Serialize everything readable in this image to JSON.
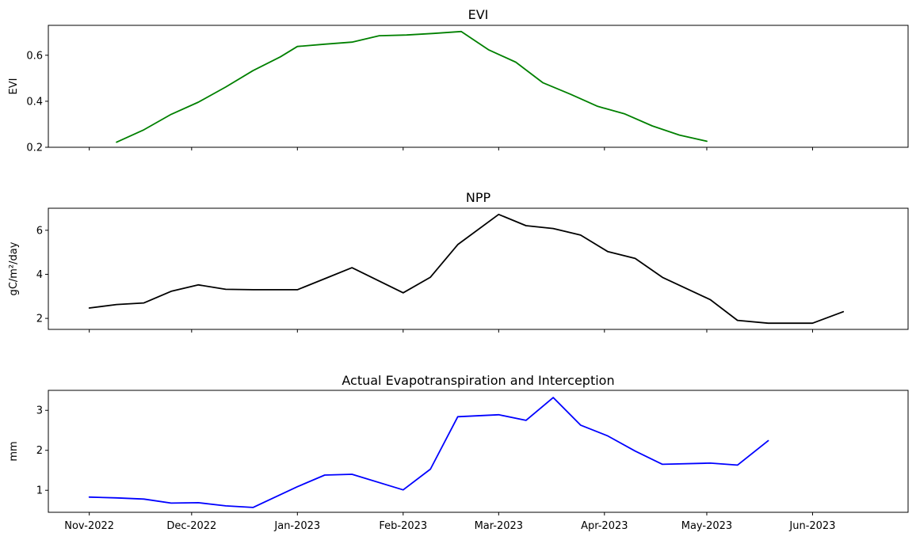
{
  "chart_data": [
    {
      "type": "line",
      "title": "EVI",
      "ylabel": "EVI",
      "xlabel": "",
      "color": "#008000",
      "ylim": [
        0.2,
        0.73
      ],
      "yticks": [
        0.2,
        0.4,
        0.6
      ],
      "ytick_labels": [
        "0.2",
        "0.4",
        "0.6"
      ],
      "series": [
        {
          "x": [
            "2022-11-09",
            "2022-11-17",
            "2022-11-25",
            "2022-12-03",
            "2022-12-11",
            "2022-12-19",
            "2022-12-27",
            "2023-01-01",
            "2023-01-09",
            "2023-01-17",
            "2023-01-25",
            "2023-02-02",
            "2023-02-10",
            "2023-02-18",
            "2023-02-26",
            "2023-03-06",
            "2023-03-14",
            "2023-03-22",
            "2023-03-30",
            "2023-04-07",
            "2023-04-15",
            "2023-04-23",
            "2023-05-01",
            "2023-05-09",
            "2023-05-17",
            "2023-05-25",
            "2023-06-02",
            "2023-06-10",
            "2023-06-18"
          ],
          "values": [
            0.222,
            0.276,
            0.343,
            0.396,
            0.462,
            0.533,
            0.593,
            0.638,
            0.648,
            0.657,
            0.685,
            0.688,
            0.695,
            0.703,
            0.624,
            0.57,
            0.48,
            0.431,
            0.378,
            0.345,
            0.293,
            0.253,
            0.226,
            null,
            null,
            null,
            null,
            null,
            null
          ]
        }
      ]
    },
    {
      "type": "line",
      "title": "NPP",
      "ylabel": "gC/m²/day",
      "xlabel": "",
      "color": "#000000",
      "ylim": [
        1.5,
        7.0
      ],
      "yticks": [
        2,
        4,
        6
      ],
      "ytick_labels": [
        "2",
        "4",
        "6"
      ],
      "series": [
        {
          "x": [
            "2022-11-01",
            "2022-11-09",
            "2022-11-17",
            "2022-11-25",
            "2022-12-03",
            "2022-12-11",
            "2022-12-19",
            "2023-01-01",
            "2023-01-09",
            "2023-01-17",
            "2023-02-01",
            "2023-02-09",
            "2023-02-17",
            "2023-03-01",
            "2023-03-09",
            "2023-03-17",
            "2023-03-25",
            "2023-04-02",
            "2023-04-10",
            "2023-04-18",
            "2023-05-02",
            "2023-05-10",
            "2023-05-19",
            "2023-06-01",
            "2023-06-10"
          ],
          "values": [
            2.47,
            2.63,
            2.7,
            3.23,
            3.52,
            3.32,
            3.3,
            3.3,
            3.8,
            4.3,
            3.16,
            3.87,
            5.35,
            6.72,
            6.21,
            6.08,
            5.78,
            5.03,
            4.72,
            3.86,
            2.85,
            1.91,
            1.78,
            1.78,
            2.3
          ]
        }
      ]
    },
    {
      "type": "line",
      "title": "Actual Evapotranspiration and Interception",
      "ylabel": "mm",
      "xlabel": "",
      "color": "#0000ff",
      "ylim": [
        0.45,
        3.5
      ],
      "yticks": [
        1,
        2,
        3
      ],
      "ytick_labels": [
        "1",
        "2",
        "3"
      ],
      "series": [
        {
          "x": [
            "2022-11-01",
            "2022-11-09",
            "2022-11-17",
            "2022-11-25",
            "2022-12-03",
            "2022-12-11",
            "2022-12-19",
            "2023-01-01",
            "2023-01-09",
            "2023-01-17",
            "2023-02-01",
            "2023-02-09",
            "2023-02-17",
            "2023-03-01",
            "2023-03-09",
            "2023-03-17",
            "2023-03-25",
            "2023-04-02",
            "2023-04-10",
            "2023-04-18",
            "2023-05-02",
            "2023-05-10",
            "2023-05-19",
            "2023-06-01",
            "2023-06-10"
          ],
          "values": [
            0.83,
            0.81,
            0.78,
            0.68,
            0.69,
            0.61,
            0.57,
            1.09,
            1.38,
            1.4,
            1.01,
            1.53,
            2.84,
            2.89,
            2.75,
            3.32,
            2.63,
            2.36,
            1.98,
            1.65,
            1.68,
            1.63,
            2.24,
            null,
            null
          ]
        }
      ]
    }
  ],
  "x_axis": {
    "tick_dates": [
      "2022-11-01",
      "2022-12-01",
      "2023-01-01",
      "2023-02-01",
      "2023-03-01",
      "2023-04-01",
      "2023-05-01",
      "2023-06-01"
    ],
    "tick_labels": [
      "Nov-2022",
      "Dec-2022",
      "Jan-2023",
      "Feb-2023",
      "Mar-2023",
      "Apr-2023",
      "May-2023",
      "Jun-2023"
    ],
    "range": [
      "2022-10-20",
      "2023-06-29"
    ]
  }
}
